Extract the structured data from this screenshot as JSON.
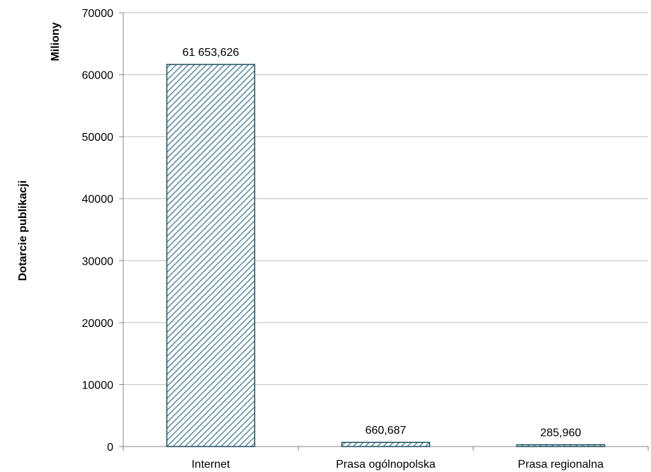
{
  "chart_data": {
    "type": "bar",
    "categories": [
      "Internet",
      "Prasa ogólnopolska",
      "Prasa regionalna"
    ],
    "values": [
      61653.626,
      660.687,
      285.96
    ],
    "data_labels": [
      "61 653,626",
      "660,687",
      "285,960"
    ],
    "ylabel": "Dotarcie publikacji",
    "y_unit_label": "Miliony",
    "ylim": [
      0,
      70000
    ],
    "yticks": [
      0,
      10000,
      20000,
      30000,
      40000,
      50000,
      60000,
      70000
    ],
    "ytick_labels": [
      "0",
      "10000",
      "20000",
      "30000",
      "40000",
      "50000",
      "60000",
      "70000"
    ],
    "grid": true,
    "bar_fill": "hatched",
    "colors": {
      "bar_stroke": "#1f4e5f",
      "hatch": "#5a8a9e",
      "grid": "#bfbfbf",
      "axis": "#868686"
    }
  }
}
